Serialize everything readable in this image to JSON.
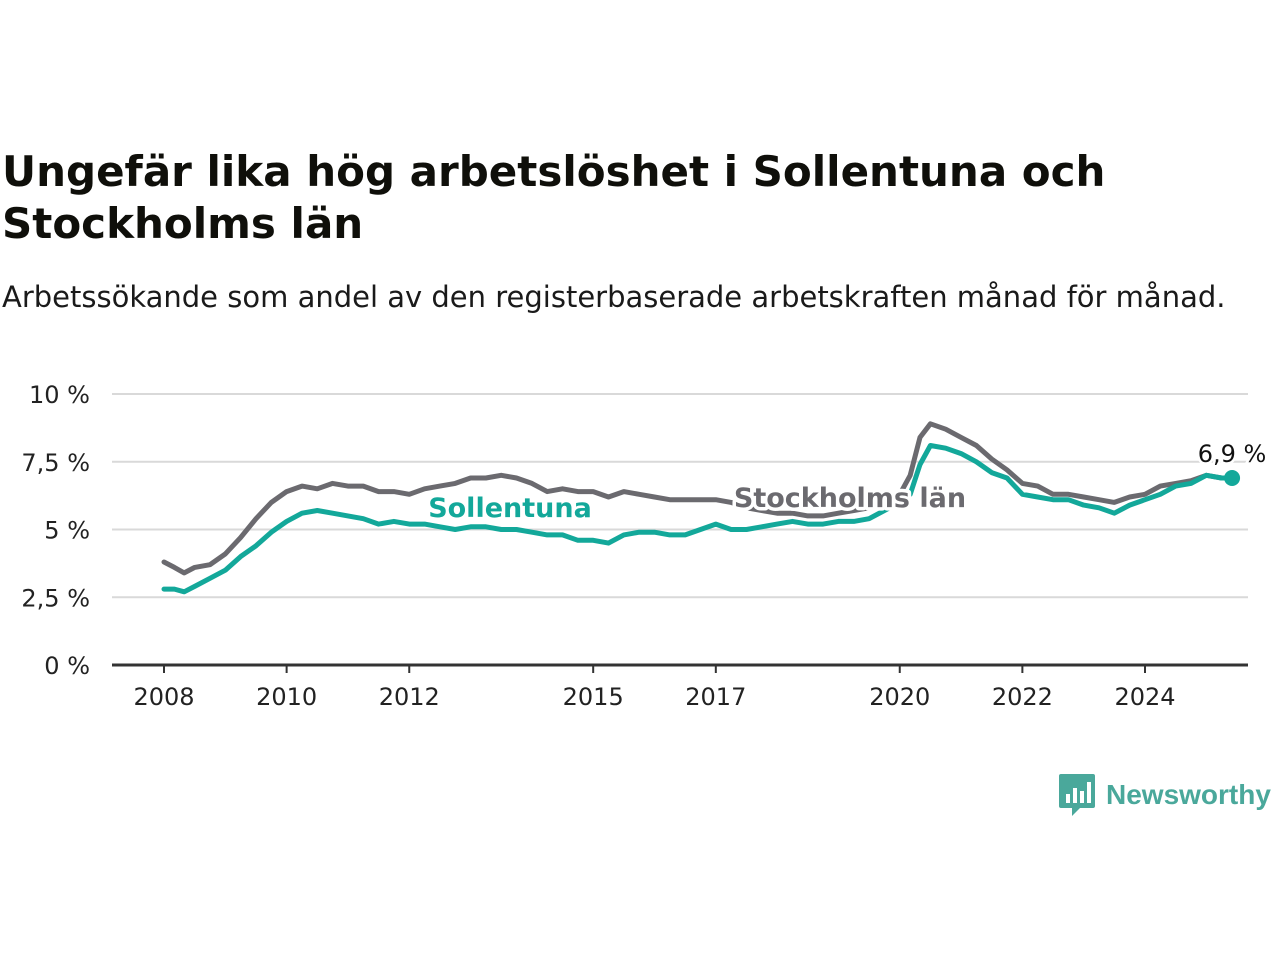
{
  "page": {
    "title": "Ungefär lika hög arbetslöshet i Sollentuna och Stockholms län",
    "subtitle": "Arbetssökande som andel av den registerbaserade arbetskraften månad för månad.",
    "brand": "Newsworthy"
  },
  "colors": {
    "sollentuna": "#13a89a",
    "stockholm": "#6b6a6f",
    "grid": "#d9d9d9",
    "axis": "#333333",
    "brand": "#4aa89b"
  },
  "chart_data": {
    "type": "line",
    "title": "Ungefär lika hög arbetslöshet i Sollentuna och Stockholms län",
    "subtitle": "Arbetssökande som andel av den registerbaserade arbetskraften månad för månad.",
    "xlabel": "",
    "ylabel": "",
    "xlim": [
      2008,
      2025.75
    ],
    "ylim": [
      0,
      10
    ],
    "y_ticks": [
      0,
      2.5,
      5,
      7.5,
      10
    ],
    "y_tick_labels": [
      "0 %",
      "2,5 %",
      "5 %",
      "7,5 %",
      "10 %"
    ],
    "x_ticks": [
      2008,
      2010,
      2012,
      2015,
      2017,
      2020,
      2022,
      2024
    ],
    "x_tick_labels": [
      "2008",
      "2010",
      "2012",
      "2015",
      "2017",
      "2020",
      "2022",
      "2024"
    ],
    "grid": true,
    "end_label": "6,9 %",
    "series": [
      {
        "name": "Sollentuna",
        "x": [
          2008.0,
          2008.17,
          2008.33,
          2008.5,
          2008.75,
          2009.0,
          2009.25,
          2009.5,
          2009.75,
          2010.0,
          2010.25,
          2010.5,
          2010.75,
          2011.0,
          2011.25,
          2011.5,
          2011.75,
          2012.0,
          2012.25,
          2012.5,
          2012.75,
          2013.0,
          2013.25,
          2013.5,
          2013.75,
          2014.0,
          2014.25,
          2014.5,
          2014.75,
          2015.0,
          2015.25,
          2015.5,
          2015.75,
          2016.0,
          2016.25,
          2016.5,
          2016.75,
          2017.0,
          2017.25,
          2017.5,
          2017.75,
          2018.0,
          2018.25,
          2018.5,
          2018.75,
          2019.0,
          2019.25,
          2019.5,
          2019.75,
          2020.0,
          2020.17,
          2020.33,
          2020.5,
          2020.75,
          2021.0,
          2021.25,
          2021.5,
          2021.75,
          2022.0,
          2022.25,
          2022.5,
          2022.75,
          2023.0,
          2023.25,
          2023.5,
          2023.75,
          2024.0,
          2024.25,
          2024.5,
          2024.75,
          2025.0,
          2025.25,
          2025.42
        ],
        "values": [
          2.8,
          2.8,
          2.7,
          2.9,
          3.2,
          3.5,
          4.0,
          4.4,
          4.9,
          5.3,
          5.6,
          5.7,
          5.6,
          5.5,
          5.4,
          5.2,
          5.3,
          5.2,
          5.2,
          5.1,
          5.0,
          5.1,
          5.1,
          5.0,
          5.0,
          4.9,
          4.8,
          4.8,
          4.6,
          4.6,
          4.5,
          4.8,
          4.9,
          4.9,
          4.8,
          4.8,
          5.0,
          5.2,
          5.0,
          5.0,
          5.1,
          5.2,
          5.3,
          5.2,
          5.2,
          5.3,
          5.3,
          5.4,
          5.7,
          6.0,
          6.3,
          7.4,
          8.1,
          8.0,
          7.8,
          7.5,
          7.1,
          6.9,
          6.3,
          6.2,
          6.1,
          6.1,
          5.9,
          5.8,
          5.6,
          5.9,
          6.1,
          6.3,
          6.6,
          6.7,
          7.0,
          6.9,
          6.9
        ]
      },
      {
        "name": "Stockholms län",
        "x": [
          2008.0,
          2008.17,
          2008.33,
          2008.5,
          2008.75,
          2009.0,
          2009.25,
          2009.5,
          2009.75,
          2010.0,
          2010.25,
          2010.5,
          2010.75,
          2011.0,
          2011.25,
          2011.5,
          2011.75,
          2012.0,
          2012.25,
          2012.5,
          2012.75,
          2013.0,
          2013.25,
          2013.5,
          2013.75,
          2014.0,
          2014.25,
          2014.5,
          2014.75,
          2015.0,
          2015.25,
          2015.5,
          2015.75,
          2016.0,
          2016.25,
          2016.5,
          2016.75,
          2017.0,
          2017.25,
          2017.5,
          2017.75,
          2018.0,
          2018.25,
          2018.5,
          2018.75,
          2019.0,
          2019.25,
          2019.5,
          2019.75,
          2020.0,
          2020.17,
          2020.33,
          2020.5,
          2020.75,
          2021.0,
          2021.25,
          2021.5,
          2021.75,
          2022.0,
          2022.25,
          2022.5,
          2022.75,
          2023.0,
          2023.25,
          2023.5,
          2023.75,
          2024.0,
          2024.25,
          2024.5,
          2024.75,
          2025.0,
          2025.25,
          2025.42
        ],
        "values": [
          3.8,
          3.6,
          3.4,
          3.6,
          3.7,
          4.1,
          4.7,
          5.4,
          6.0,
          6.4,
          6.6,
          6.5,
          6.7,
          6.6,
          6.6,
          6.4,
          6.4,
          6.3,
          6.5,
          6.6,
          6.7,
          6.9,
          6.9,
          7.0,
          6.9,
          6.7,
          6.4,
          6.5,
          6.4,
          6.4,
          6.2,
          6.4,
          6.3,
          6.2,
          6.1,
          6.1,
          6.1,
          6.1,
          6.0,
          5.8,
          5.7,
          5.6,
          5.6,
          5.5,
          5.5,
          5.6,
          5.7,
          5.8,
          6.0,
          6.3,
          7.0,
          8.4,
          8.9,
          8.7,
          8.4,
          8.1,
          7.6,
          7.2,
          6.7,
          6.6,
          6.3,
          6.3,
          6.2,
          6.1,
          6.0,
          6.2,
          6.3,
          6.6,
          6.7,
          6.8,
          7.0,
          6.9,
          6.9
        ]
      }
    ]
  }
}
